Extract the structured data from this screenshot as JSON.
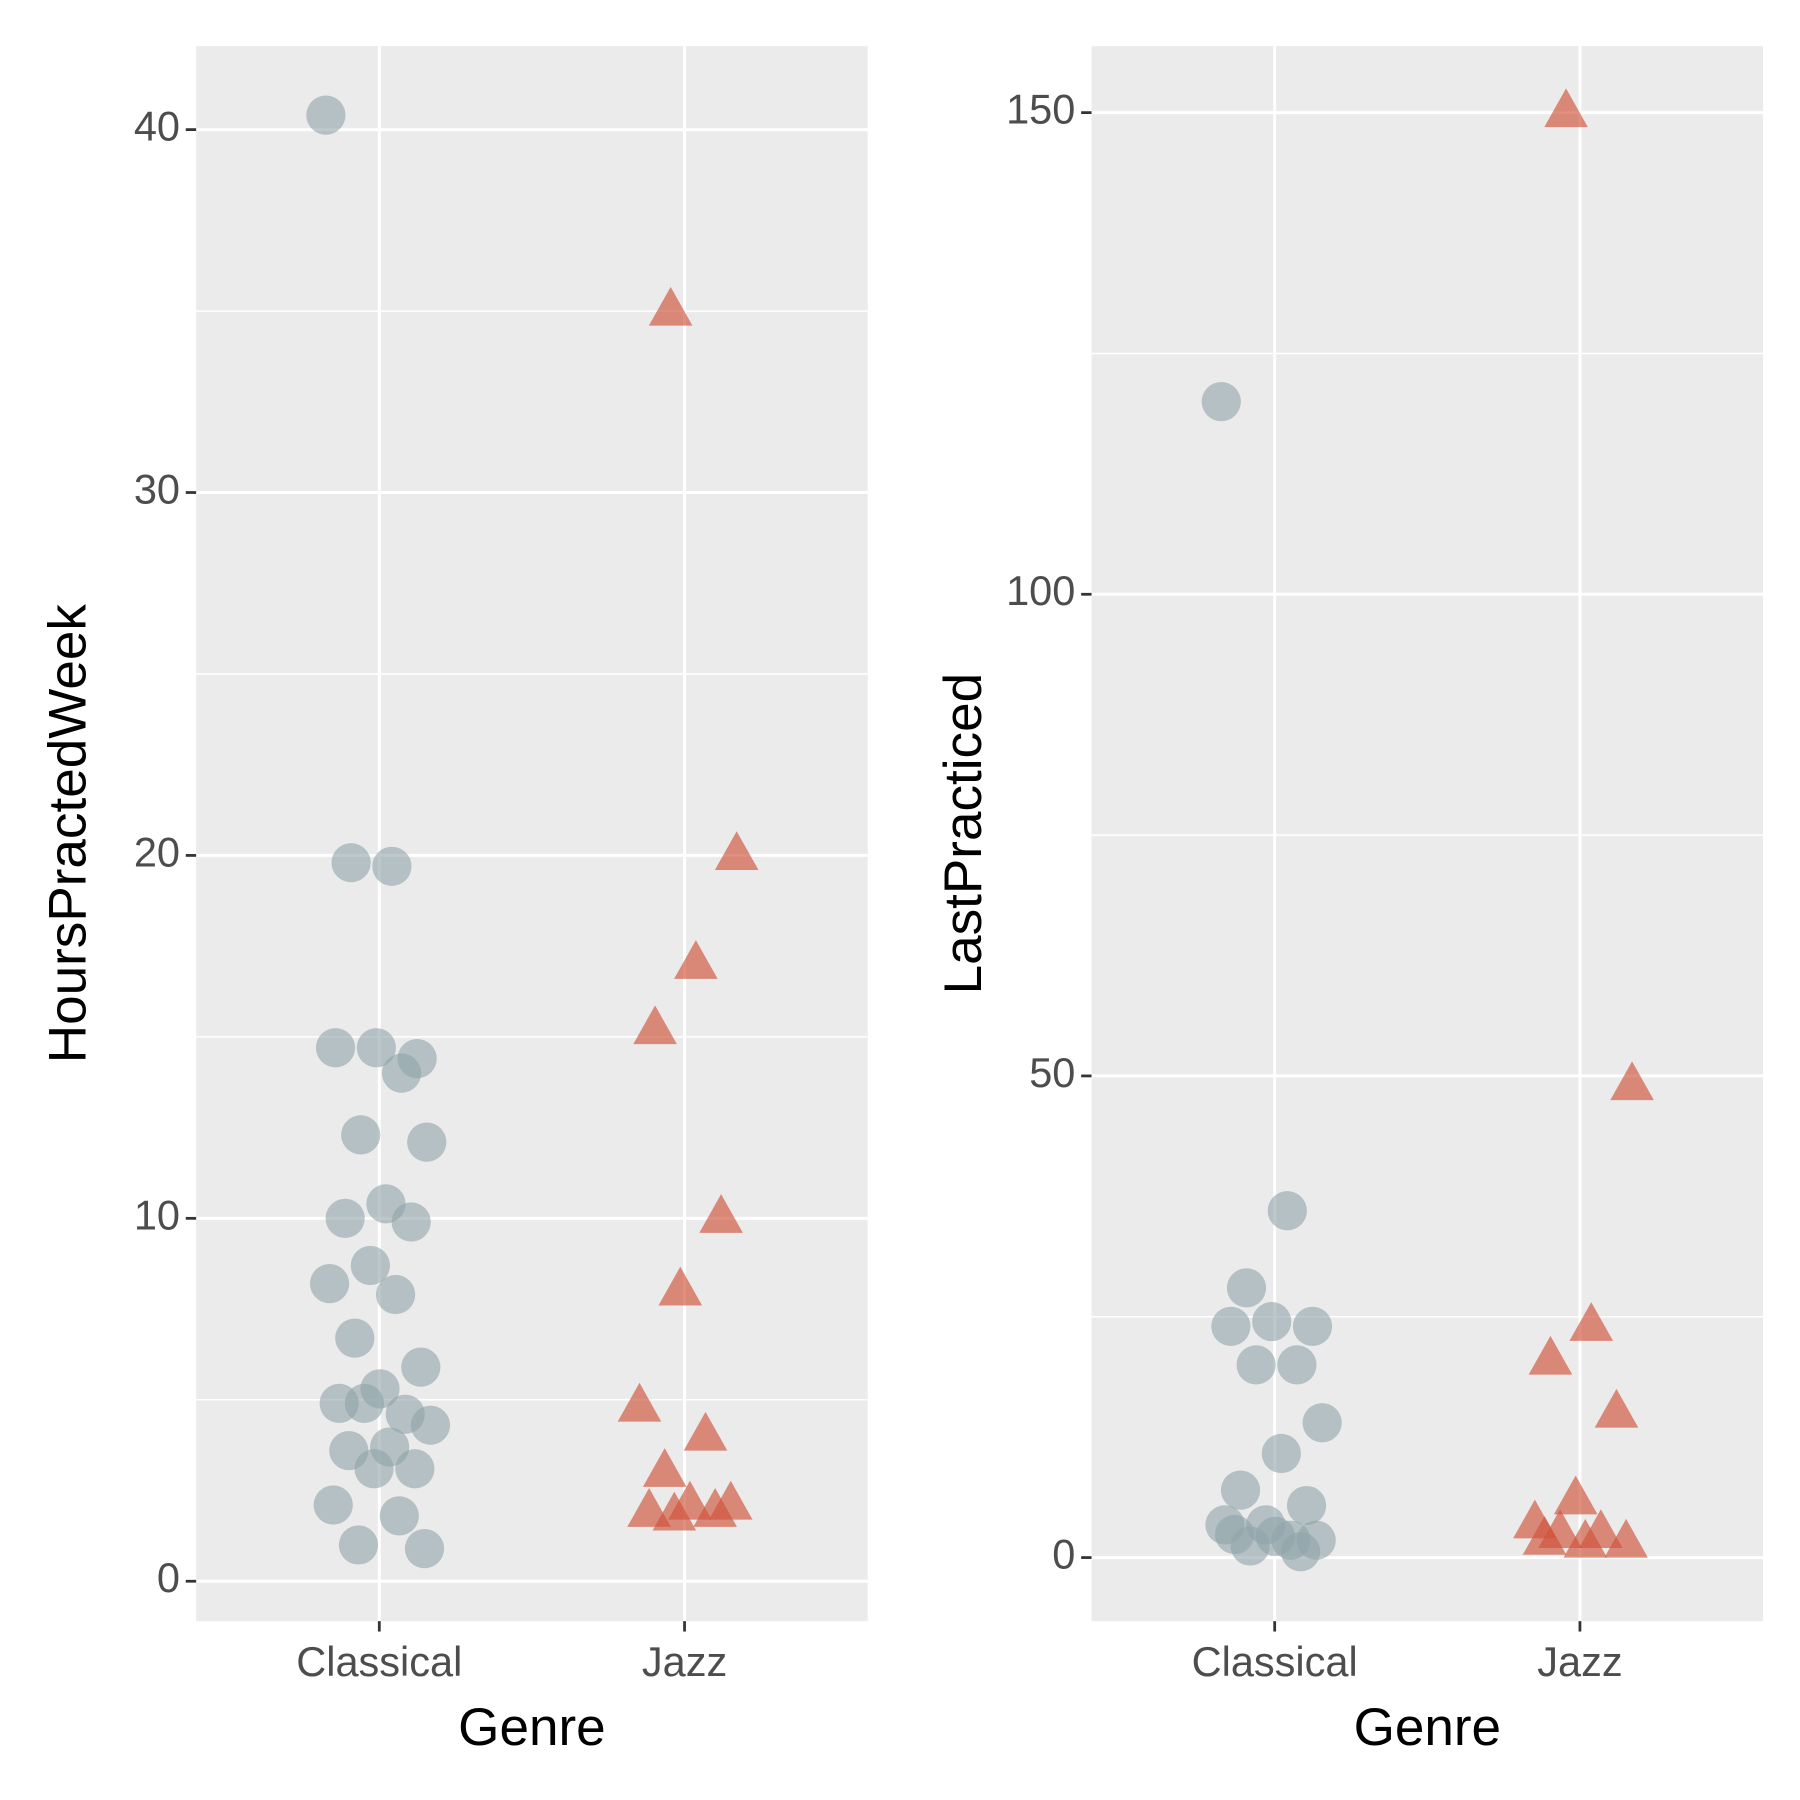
{
  "chart_data": [
    {
      "type": "strip",
      "x_label": "Genre",
      "y_label": "HoursPractedWeek",
      "categories": [
        "Classical",
        "Jazz"
      ],
      "series": [
        {
          "color": "#8fa3a8",
          "shape": "circle",
          "values": [
            40.4,
            19.7,
            19.8,
            14.4,
            14.7,
            14.7,
            14.0,
            12.3,
            12.1,
            10.4,
            10.0,
            9.9,
            8.7,
            8.2,
            7.9,
            6.7,
            5.9,
            5.3,
            4.9,
            4.6,
            4.9,
            4.3,
            3.7,
            3.6,
            3.1,
            3.1,
            2.1,
            1.8,
            1.0,
            0.9
          ]
        },
        {
          "color": "#d0533a",
          "shape": "triangle",
          "values": [
            35,
            20,
            17,
            15.2,
            10,
            8,
            4.8,
            4,
            3,
            2.1,
            2.1,
            1.9,
            1.9,
            1.8
          ]
        }
      ],
      "ylim": [
        -1.1,
        42.3
      ],
      "yticks": [
        0,
        10,
        20,
        30,
        40
      ],
      "grid": true,
      "minor_grid": true
    },
    {
      "type": "strip",
      "x_label": "Genre",
      "y_label": "LastPracticed",
      "categories": [
        "Classical",
        "Jazz"
      ],
      "series": [
        {
          "color": "#8fa3a8",
          "shape": "circle",
          "values": [
            120,
            36,
            28,
            24,
            24.5,
            24,
            20,
            20,
            14,
            10.8,
            7,
            5.4,
            3.4,
            3.4,
            1.8,
            1.2,
            1.8,
            2.2,
            2.4,
            0.6
          ]
        },
        {
          "color": "#d0533a",
          "shape": "triangle",
          "values": [
            150,
            49,
            24,
            20.5,
            15,
            6,
            3.5,
            2.5,
            2.5,
            1.5,
            1.5,
            1.8
          ]
        }
      ],
      "ylim": [
        -6.6,
        156.9
      ],
      "yticks": [
        0,
        50,
        100,
        150
      ],
      "grid": true,
      "minor_grid": true
    }
  ]
}
